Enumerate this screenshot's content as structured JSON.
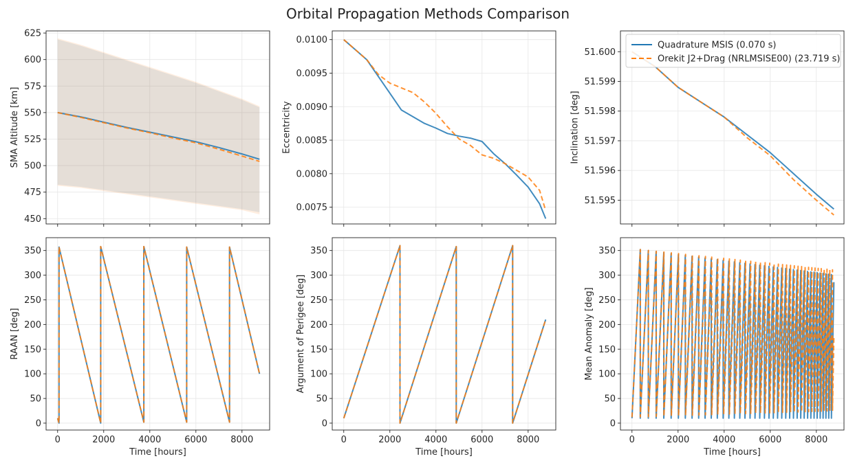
{
  "figure": {
    "title": "Orbital Propagation Methods Comparison",
    "colors": {
      "quadrature": "#1f77b4",
      "orekit": "#ff7f0e"
    }
  },
  "legend": {
    "entries": [
      "Quadrature MSIS (0.070 s)",
      "Orekit J2+Drag (NRLMSISE00) (23.719 s)"
    ],
    "placement": "top-right of inclination panel"
  },
  "chart_data": [
    {
      "id": "sma",
      "type": "line",
      "ylabel": "SMA Altitude [km]",
      "xlabel": "",
      "xlim": [
        -500,
        9200
      ],
      "ylim": [
        445,
        627
      ],
      "xticks": [
        0,
        2000,
        4000,
        6000,
        8000
      ],
      "show_xtick_labels": false,
      "yticks": [
        450,
        475,
        500,
        525,
        550,
        575,
        600,
        625
      ],
      "ytick_labels": [
        "450",
        "475",
        "500",
        "525",
        "550",
        "575",
        "600",
        "625"
      ],
      "grid": true,
      "series": [
        {
          "name": "Quadrature MSIS (0.070 s)",
          "style": "solid",
          "x": [
            0,
            1000,
            2000,
            3000,
            4000,
            5000,
            6000,
            7000,
            8000,
            8760
          ],
          "y": [
            550,
            546,
            541,
            536,
            531.5,
            527,
            522.5,
            517,
            511,
            506
          ],
          "band_upper": [
            619,
            613,
            606,
            599,
            592,
            585,
            578,
            570,
            562,
            555
          ],
          "band_lower": [
            482,
            480,
            477,
            474,
            471,
            468,
            465,
            462,
            459,
            456
          ]
        },
        {
          "name": "Orekit J2+Drag (NRLMSISE00) (23.719 s)",
          "style": "dashed",
          "x": [
            0,
            1000,
            2000,
            3000,
            4000,
            5000,
            6000,
            7000,
            8000,
            8760
          ],
          "y": [
            550,
            545.5,
            540.5,
            535.5,
            531,
            526,
            521.5,
            515.5,
            509,
            504
          ],
          "band_upper": [
            620,
            614,
            607,
            600,
            593,
            586,
            579,
            571,
            563,
            556
          ],
          "band_lower": [
            481,
            479,
            476,
            473,
            470,
            467,
            464,
            461,
            458,
            454
          ]
        }
      ]
    },
    {
      "id": "ecc",
      "type": "line",
      "ylabel": "Eccentricity",
      "xlabel": "",
      "xlim": [
        -500,
        9200
      ],
      "ylim": [
        0.00725,
        0.01013
      ],
      "xticks": [
        0,
        2000,
        4000,
        6000,
        8000
      ],
      "show_xtick_labels": false,
      "yticks": [
        0.0075,
        0.008,
        0.0085,
        0.009,
        0.0095,
        0.01
      ],
      "ytick_labels": [
        "0.0075",
        "0.0080",
        "0.0085",
        "0.0090",
        "0.0095",
        "0.0100"
      ],
      "grid": true,
      "series": [
        {
          "name": "Quadrature MSIS (0.070 s)",
          "style": "solid",
          "x": [
            0,
            500,
            1000,
            1500,
            2000,
            2500,
            3000,
            3500,
            4000,
            4500,
            5000,
            5500,
            6000,
            6500,
            7000,
            7500,
            8000,
            8500,
            8760
          ],
          "y": [
            0.01,
            0.00985,
            0.0097,
            0.00945,
            0.0092,
            0.00895,
            0.00885,
            0.00875,
            0.00868,
            0.0086,
            0.00856,
            0.00853,
            0.00848,
            0.0083,
            0.00815,
            0.00798,
            0.0078,
            0.00755,
            0.00733
          ]
        },
        {
          "name": "Orekit J2+Drag (NRLMSISE00) (23.719 s)",
          "style": "dashed",
          "x": [
            0,
            500,
            1000,
            1500,
            2000,
            2500,
            3000,
            3500,
            4000,
            4500,
            5000,
            5500,
            6000,
            6500,
            7000,
            7500,
            8000,
            8500,
            8760
          ],
          "y": [
            0.01,
            0.00985,
            0.0097,
            0.00948,
            0.00935,
            0.00928,
            0.00921,
            0.00907,
            0.0089,
            0.0087,
            0.00852,
            0.00842,
            0.00828,
            0.00823,
            0.00815,
            0.00805,
            0.00795,
            0.00775,
            0.00745
          ]
        }
      ]
    },
    {
      "id": "inc",
      "type": "line",
      "ylabel": "Inclination [deg]",
      "xlabel": "",
      "xlim": [
        -500,
        9200
      ],
      "ylim": [
        51.5942,
        51.6007
      ],
      "xticks": [
        0,
        2000,
        4000,
        6000,
        8000
      ],
      "show_xtick_labels": false,
      "yticks": [
        51.595,
        51.596,
        51.597,
        51.598,
        51.599,
        51.6
      ],
      "ytick_labels": [
        "51.595",
        "51.596",
        "51.597",
        "51.598",
        "51.599",
        "51.600"
      ],
      "grid": true,
      "series": [
        {
          "name": "Quadrature MSIS (0.070 s)",
          "style": "solid",
          "x": [
            0,
            1000,
            2000,
            3000,
            4000,
            5000,
            6000,
            7000,
            8000,
            8760
          ],
          "y": [
            51.6,
            51.5995,
            51.5988,
            51.5983,
            51.5978,
            51.5972,
            51.5966,
            51.5959,
            51.5952,
            51.5947
          ]
        },
        {
          "name": "Orekit J2+Drag (NRLMSISE00) (23.719 s)",
          "style": "dashed",
          "x": [
            0,
            1000,
            2000,
            3000,
            4000,
            5000,
            6000,
            7000,
            8000,
            8760
          ],
          "y": [
            51.6,
            51.5995,
            51.5988,
            51.5983,
            51.5978,
            51.5971,
            51.5965,
            51.5957,
            51.595,
            51.5945
          ]
        }
      ]
    },
    {
      "id": "raan",
      "type": "line",
      "ylabel": "RAAN [deg]",
      "xlabel": "Time [hours]",
      "xlim": [
        -500,
        9200
      ],
      "ylim": [
        -14,
        376
      ],
      "xticks": [
        0,
        2000,
        4000,
        6000,
        8000
      ],
      "xtick_labels": [
        "0",
        "2000",
        "4000",
        "6000",
        "8000"
      ],
      "show_xtick_labels": true,
      "yticks": [
        0,
        50,
        100,
        150,
        200,
        250,
        300,
        350
      ],
      "ytick_labels": [
        "0",
        "50",
        "100",
        "150",
        "200",
        "250",
        "300",
        "350"
      ],
      "grid": true,
      "series": [
        {
          "name": "Quadrature MSIS (0.070 s)",
          "style": "solid",
          "x": [
            0,
            60,
            60,
            1870,
            1870,
            3740,
            3740,
            5600,
            5600,
            7460,
            7460,
            8760
          ],
          "y": [
            10,
            0,
            357,
            0,
            358,
            2,
            358,
            2,
            357,
            2,
            357,
            100
          ]
        },
        {
          "name": "Orekit J2+Drag (NRLMSISE00) (23.719 s)",
          "style": "dashed",
          "x": [
            0,
            60,
            60,
            1870,
            1870,
            3740,
            3740,
            5600,
            5600,
            7460,
            7460,
            8760
          ],
          "y": [
            10,
            0,
            357,
            0,
            358,
            2,
            358,
            2,
            357,
            2,
            357,
            100
          ]
        }
      ]
    },
    {
      "id": "argp",
      "type": "line",
      "ylabel": "Argument of Perigee [deg]",
      "xlabel": "Time [hours]",
      "xlim": [
        -500,
        9200
      ],
      "ylim": [
        -14,
        376
      ],
      "xticks": [
        0,
        2000,
        4000,
        6000,
        8000
      ],
      "xtick_labels": [
        "0",
        "2000",
        "4000",
        "6000",
        "8000"
      ],
      "show_xtick_labels": true,
      "yticks": [
        0,
        50,
        100,
        150,
        200,
        250,
        300,
        350
      ],
      "ytick_labels": [
        "0",
        "50",
        "100",
        "150",
        "200",
        "250",
        "300",
        "350"
      ],
      "grid": true,
      "series": [
        {
          "name": "Quadrature MSIS (0.070 s)",
          "style": "solid",
          "x": [
            0,
            2440,
            2440,
            4880,
            4880,
            7330,
            7330,
            8760
          ],
          "y": [
            10,
            360,
            0,
            358,
            0,
            360,
            0,
            210
          ]
        },
        {
          "name": "Orekit J2+Drag (NRLMSISE00) (23.719 s)",
          "style": "dashed",
          "x": [
            0,
            2440,
            2440,
            4880,
            4880,
            7330,
            7330,
            8760
          ],
          "y": [
            10,
            360,
            0,
            358,
            0,
            360,
            0,
            210
          ]
        }
      ]
    },
    {
      "id": "ma",
      "type": "line",
      "ylabel": "Mean Anomaly [deg]",
      "xlabel": "Time [hours]",
      "xlim": [
        -500,
        9200
      ],
      "ylim": [
        -14,
        376
      ],
      "xticks": [
        0,
        2000,
        4000,
        6000,
        8000
      ],
      "xtick_labels": [
        "0",
        "2000",
        "4000",
        "6000",
        "8000"
      ],
      "show_xtick_labels": true,
      "yticks": [
        0,
        50,
        100,
        150,
        200,
        250,
        300,
        350
      ],
      "ytick_labels": [
        "0",
        "50",
        "100",
        "150",
        "200",
        "250",
        "300",
        "350"
      ],
      "grid": true,
      "series": [
        {
          "name": "Quadrature MSIS (0.070 s)",
          "style": "solid",
          "pattern": "sawtooth",
          "t_start": 0,
          "t_end": 8760,
          "period_start": 360,
          "period_end": 110,
          "peak_start": 352,
          "peak_end": 300,
          "floor_start": 10,
          "floor_end": 10
        },
        {
          "name": "Orekit J2+Drag (NRLMSISE00) (23.719 s)",
          "style": "dashed",
          "pattern": "sawtooth",
          "t_start": 0,
          "t_end": 8760,
          "period_start": 362,
          "period_end": 112,
          "peak_start": 352,
          "peak_end": 310,
          "floor_start": 12,
          "floor_end": 25
        }
      ]
    }
  ]
}
